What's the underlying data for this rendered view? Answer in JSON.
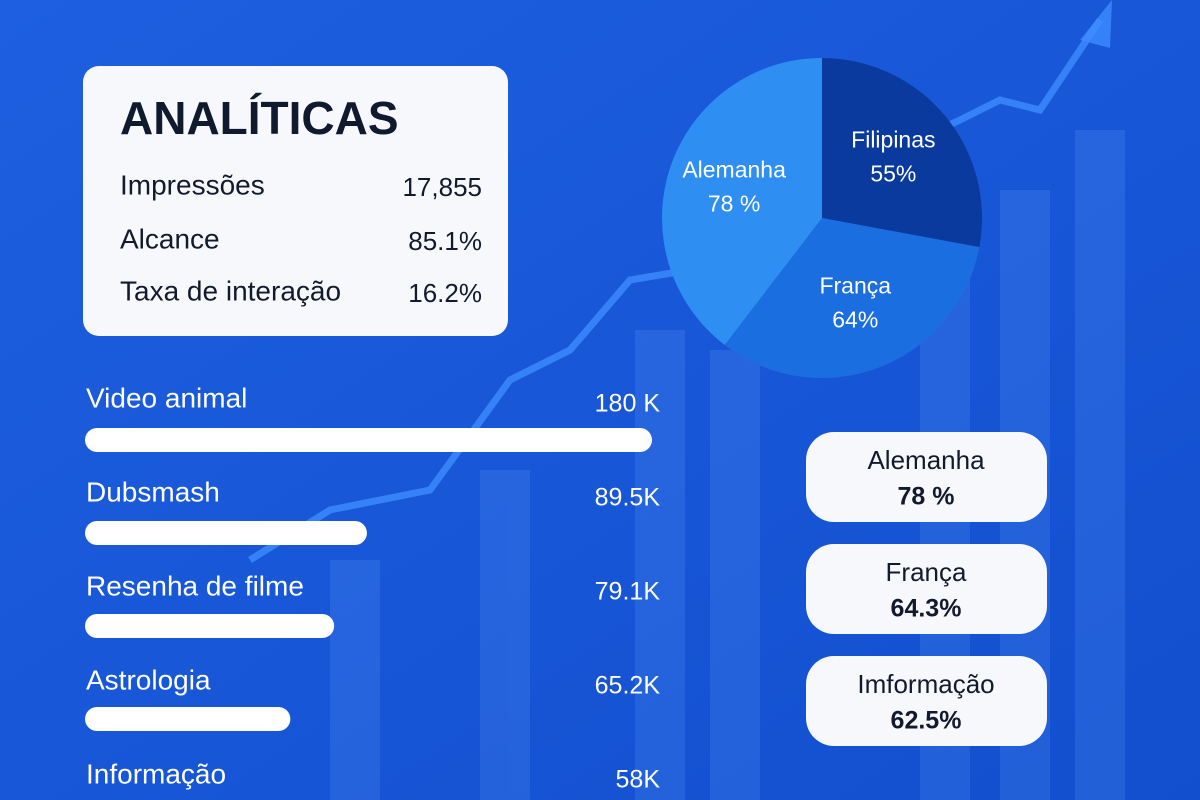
{
  "header": {
    "title": "ANALÍTICAS",
    "metrics": [
      {
        "label": "Impressões",
        "value": "17,855"
      },
      {
        "label": "Alcance",
        "value": "85.1%"
      },
      {
        "label": "Taxa de interação",
        "value": "16.2%"
      }
    ]
  },
  "bars": {
    "color": "#ffffff",
    "items": [
      {
        "label": "Video animal",
        "value": 180000,
        "value_label": "180 K"
      },
      {
        "label": "Dubsmash",
        "value": 89500,
        "value_label": "89.5K"
      },
      {
        "label": "Resenha de filme",
        "value": 79100,
        "value_label": "79.1K"
      },
      {
        "label": "Astrologia",
        "value": 65200,
        "value_label": "65.2K"
      },
      {
        "label": "Informação",
        "value": 58000,
        "value_label": "58K"
      }
    ]
  },
  "pie": {
    "slices": [
      {
        "name": "Filipinas",
        "value": 55,
        "value_label": "55%",
        "color": "#0b3a9e"
      },
      {
        "name": "França",
        "value": 64,
        "value_label": "64%",
        "color": "#1b6ee0"
      },
      {
        "name": "Alemanha",
        "value": 78,
        "value_label": "78 %",
        "color": "#2e8ef2"
      }
    ]
  },
  "pills": [
    {
      "label": "Alemanha",
      "value": "78 %"
    },
    {
      "label": "França",
      "value": "64.3%"
    },
    {
      "label": "Imformação",
      "value": "62.5%"
    }
  ]
}
